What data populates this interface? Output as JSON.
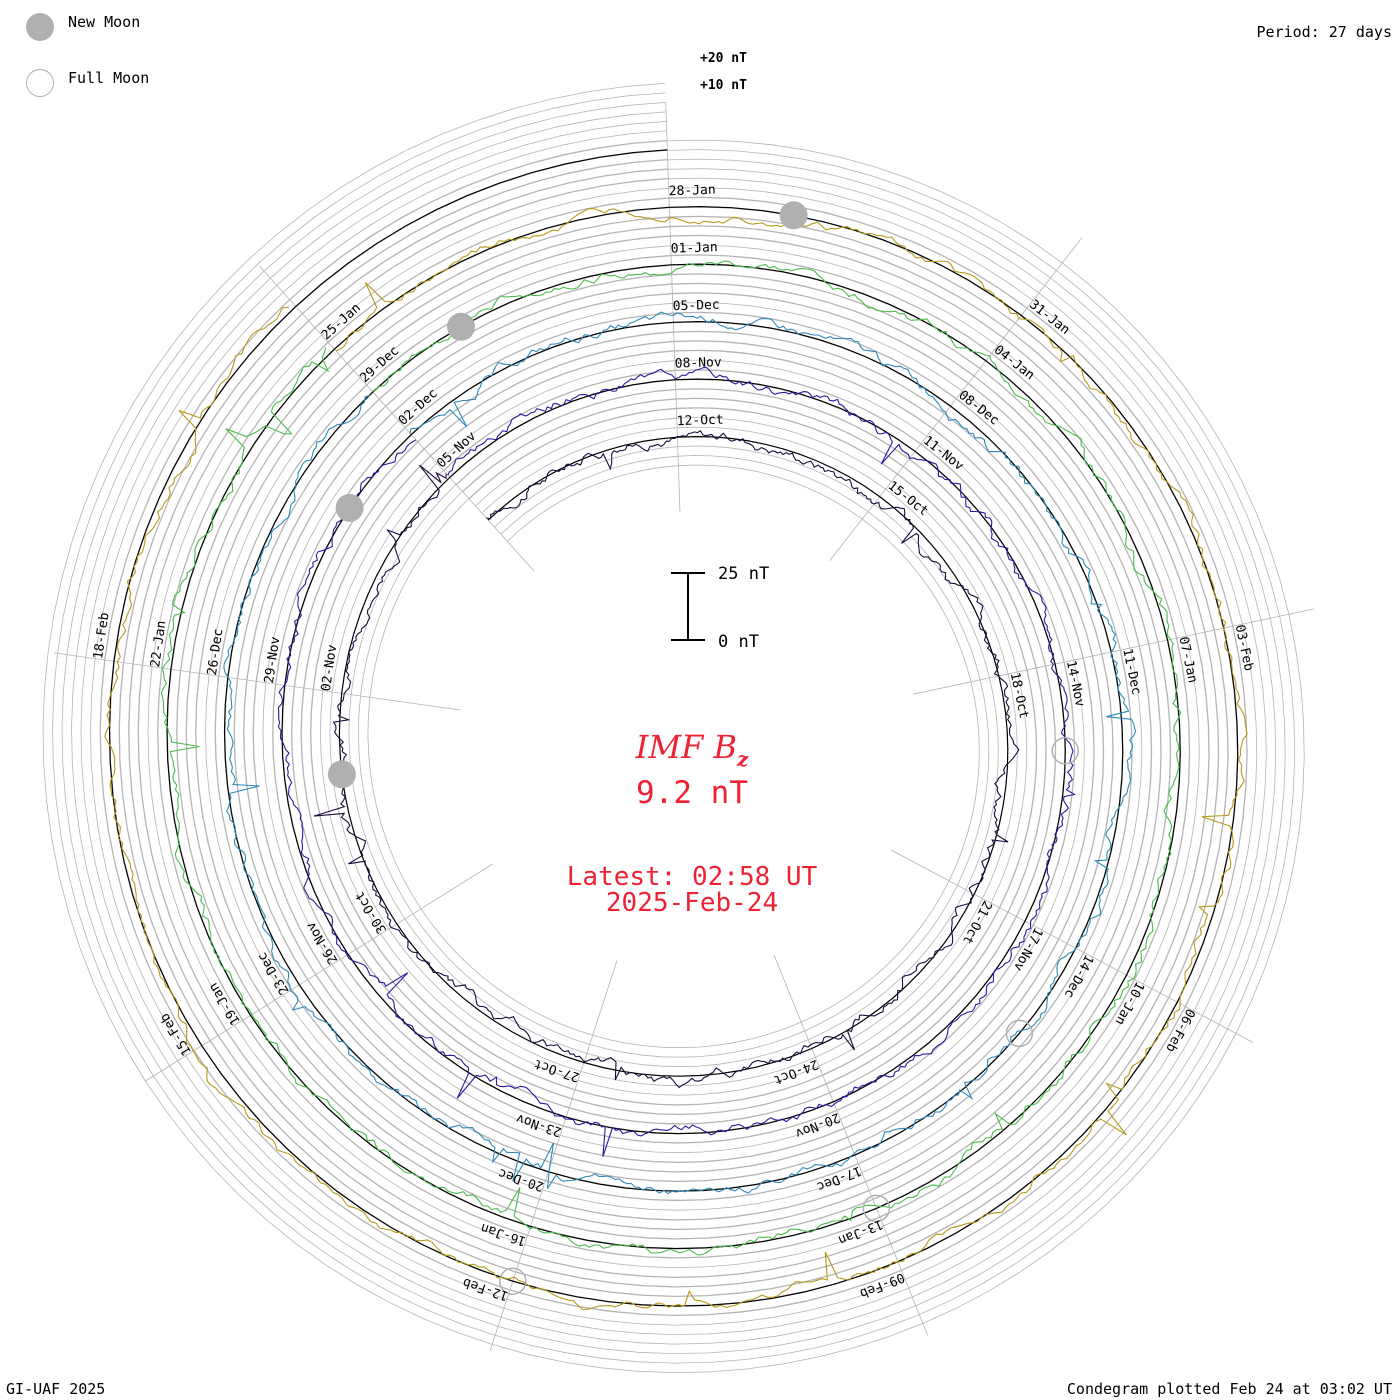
{
  "legend": {
    "new_moon_label": "New Moon",
    "full_moon_label": "Full Moon"
  },
  "period_label": "Period: 27 days",
  "footer": {
    "left": "GI-UAF 2025",
    "right": "Condegram plotted Feb 24 at 03:02 UT"
  },
  "center": {
    "title": "IMF B",
    "title_subscript": "z",
    "value": "9.2 nT",
    "latest_line": "Latest: 02:58 UT",
    "date_line": "2025-Feb-24"
  },
  "colors": {
    "center_text": "#ee2233",
    "grid": "#b4b4b4",
    "baseline": "#000000",
    "new_moon": "#b0b0b0",
    "full_moon": "#b0b0b0"
  },
  "chart_data": {
    "type": "condegram",
    "variable": "IMF Bz",
    "units": "nT",
    "period_days": 27,
    "spiral_start": "2024-Oct-09",
    "spiral_end": "2025-Feb-24",
    "scale_bar": {
      "top_label": "25 nT",
      "bottom_label": "0 nT",
      "value_nT": 25
    },
    "outer_labels": [
      "+20 nT",
      "+10 nT"
    ],
    "turns": [
      {
        "color": "#1c0b3a",
        "dates": [
          "12-Oct",
          "15-Oct",
          "18-Oct",
          "21-Oct",
          "24-Oct",
          "27-Oct",
          "30-Oct",
          "02-Nov",
          "05-Nov"
        ]
      },
      {
        "color": "#2a1aa0",
        "dates": [
          "08-Nov",
          "11-Nov",
          "14-Nov",
          "17-Nov",
          "20-Nov",
          "23-Nov",
          "26-Nov",
          "29-Nov",
          "02-Dec"
        ]
      },
      {
        "color": "#2f8ab8",
        "dates": [
          "05-Dec",
          "08-Dec",
          "11-Dec",
          "14-Dec",
          "17-Dec",
          "20-Dec",
          "23-Dec",
          "26-Dec",
          "29-Dec"
        ]
      },
      {
        "color": "#4cbb4c",
        "dates": [
          "01-Jan",
          "04-Jan",
          "07-Jan",
          "10-Jan",
          "13-Jan",
          "16-Jan",
          "19-Jan",
          "22-Jan",
          "25-Jan"
        ]
      },
      {
        "color": "#b59a1a",
        "dates": [
          "28-Jan",
          "31-Jan",
          "03-Feb",
          "06-Feb",
          "09-Feb",
          "12-Feb",
          "15-Feb",
          "18-Feb"
        ]
      }
    ],
    "moons": [
      {
        "type": "new",
        "date": "2024-Nov-01"
      },
      {
        "type": "full",
        "date": "2024-Nov-15"
      },
      {
        "type": "new",
        "date": "2024-Dec-01"
      },
      {
        "type": "full",
        "date": "2024-Dec-15"
      },
      {
        "type": "new",
        "date": "2024-Dec-30"
      },
      {
        "type": "full",
        "date": "2025-Jan-13"
      },
      {
        "type": "new",
        "date": "2025-Jan-29"
      },
      {
        "type": "full",
        "date": "2025-Feb-12"
      }
    ]
  }
}
